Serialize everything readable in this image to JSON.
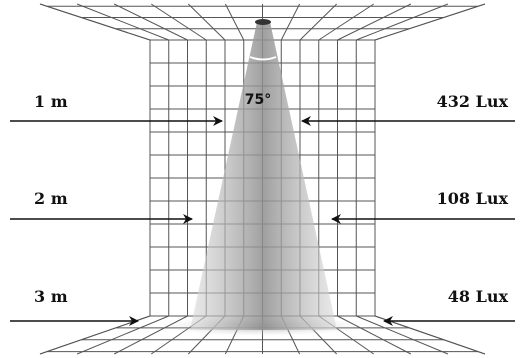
{
  "beam_angle": "75°",
  "rows": [
    {
      "distance": "1 m",
      "lux": "432 Lux"
    },
    {
      "distance": "2 m",
      "lux": "108 Lux"
    },
    {
      "distance": "3 m",
      "lux": "48 Lux"
    }
  ],
  "colors": {
    "grid": "#555555",
    "cone": "#9a9a9a",
    "arrow": "#111111"
  }
}
